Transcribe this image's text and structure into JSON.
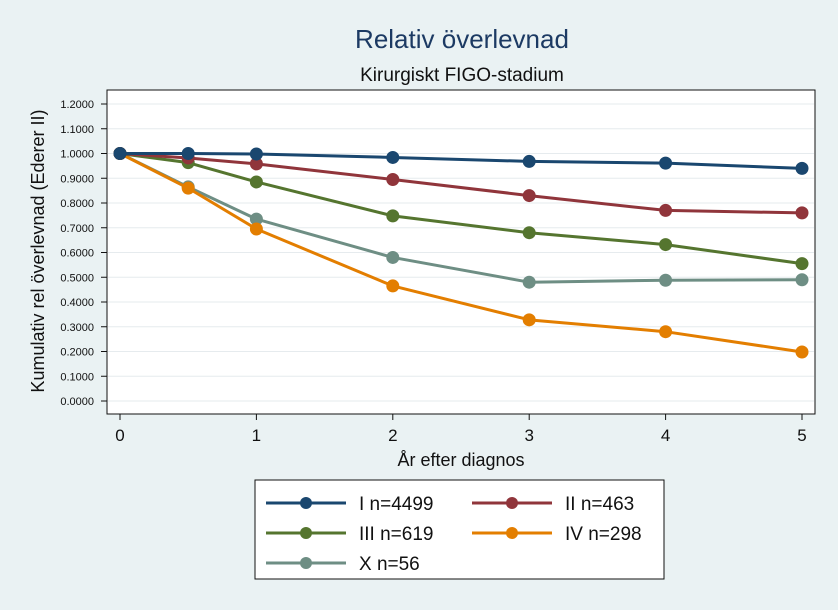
{
  "chart_data": {
    "type": "line",
    "title": "Relativ överlevnad",
    "subtitle": "Kirurgiskt FIGO-stadium",
    "xlabel": "År efter diagnos",
    "ylabel": "Kumulativ rel överlevnad (Ederer II)",
    "xlim": [
      0,
      5
    ],
    "ylim": [
      0,
      1.2
    ],
    "x_ticks": [
      0,
      1,
      2,
      3,
      4,
      5
    ],
    "y_ticks": [
      0,
      0.1,
      0.2,
      0.3,
      0.4,
      0.5,
      0.6,
      0.7,
      0.8,
      0.9,
      1.0,
      1.1,
      1.2
    ],
    "y_tick_labels": [
      "0.0000",
      "0.1000",
      "0.2000",
      "0.3000",
      "0.4000",
      "0.5000",
      "0.6000",
      "0.7000",
      "0.8000",
      "0.9000",
      "1.0000",
      "1.1000",
      "1.2000"
    ],
    "grid": true,
    "legend_position": "bottom",
    "x": [
      0,
      0.5,
      1,
      2,
      3,
      4,
      5
    ],
    "series": [
      {
        "name": "I n=4499",
        "color": "#1a476f",
        "values": [
          1.0,
          1.0,
          0.998,
          0.984,
          0.968,
          0.961,
          0.94
        ]
      },
      {
        "name": "II n=463",
        "color": "#90353b",
        "values": [
          1.0,
          0.982,
          0.958,
          0.895,
          0.83,
          0.77,
          0.76
        ]
      },
      {
        "name": "III n=619",
        "color": "#55752f",
        "values": [
          1.0,
          0.963,
          0.885,
          0.748,
          0.68,
          0.632,
          0.555
        ]
      },
      {
        "name": "IV n=298",
        "color": "#e37e00",
        "values": [
          1.0,
          0.86,
          0.695,
          0.465,
          0.328,
          0.28,
          0.198
        ]
      },
      {
        "name": "X n=56",
        "color": "#6e8e84",
        "values": [
          1.0,
          0.865,
          0.735,
          0.58,
          0.48,
          0.488,
          0.49
        ]
      }
    ]
  }
}
